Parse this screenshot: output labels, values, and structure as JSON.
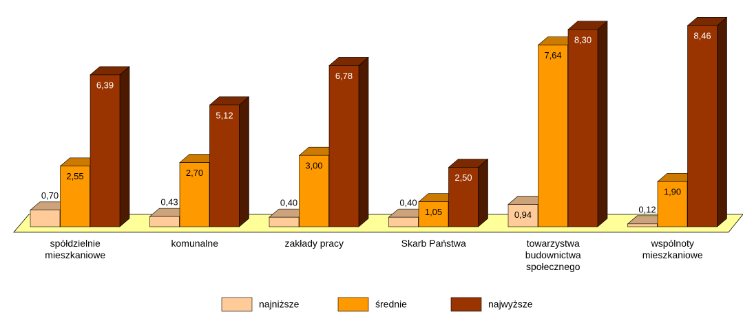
{
  "chart_data": {
    "type": "bar3d",
    "categories": [
      "spółdzielnie mieszkaniowe",
      "komunalne",
      "zakłady pracy",
      "Skarb Państwa",
      "towarzystwa budownictwa społecznego",
      "wspólnoty mieszkaniowe"
    ],
    "series": [
      {
        "name": "najniższe",
        "color": "#ffcc99",
        "values": [
          0.7,
          0.43,
          0.4,
          0.4,
          0.94,
          0.12
        ],
        "value_labels": [
          "0,70",
          "0,43",
          "0,40",
          "0,40",
          "0,94",
          "0,12"
        ]
      },
      {
        "name": "średnie",
        "color": "#ff9900",
        "values": [
          2.55,
          2.7,
          3.0,
          1.05,
          7.64,
          1.9
        ],
        "value_labels": [
          "2,55",
          "2,70",
          "3,00",
          "1,05",
          "7,64",
          "1,90"
        ]
      },
      {
        "name": "najwyższe",
        "color": "#993300",
        "values": [
          6.39,
          5.12,
          6.78,
          2.5,
          8.3,
          8.46
        ],
        "value_labels": [
          "6,39",
          "5,12",
          "6,78",
          "2,50",
          "8,30",
          "8,46"
        ]
      }
    ],
    "legend": "bottom"
  }
}
